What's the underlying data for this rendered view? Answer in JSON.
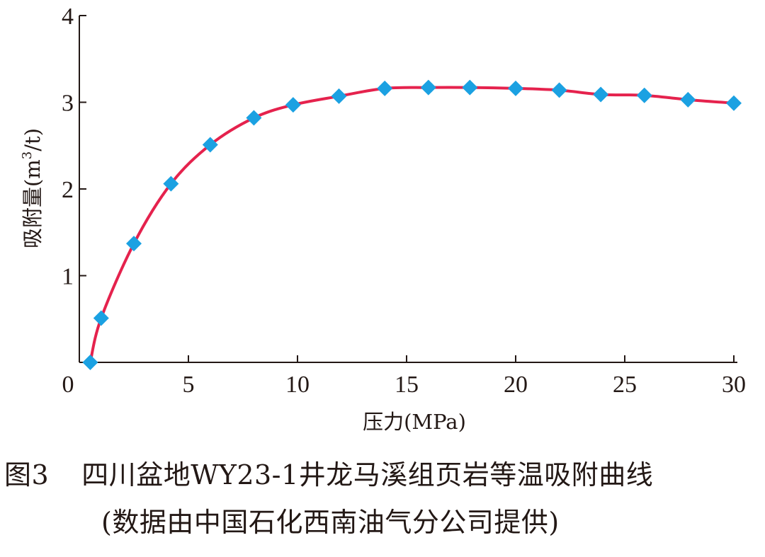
{
  "chart_data": {
    "type": "line",
    "xlabel": "压力(MPa)",
    "ylabel_main": "吸附量(m",
    "ylabel_sup": "3",
    "ylabel_tail": "/t)",
    "xlim": [
      0,
      30
    ],
    "ylim": [
      0,
      4
    ],
    "xticks": [
      0,
      5,
      10,
      15,
      20,
      25,
      30
    ],
    "yticks": [
      1,
      2,
      3,
      4
    ],
    "grid": false,
    "legend": "none",
    "line_color": "#e5224d",
    "marker_color": "#1ba1e2",
    "marker": "diamond",
    "x": [
      0.5,
      1.0,
      2.5,
      4.2,
      6.0,
      8.0,
      9.8,
      11.9,
      14.0,
      16.0,
      17.9,
      20.0,
      22.0,
      23.9,
      25.9,
      27.9,
      30.0
    ],
    "y": [
      0.0,
      0.51,
      1.37,
      2.06,
      2.51,
      2.82,
      2.97,
      3.07,
      3.16,
      3.17,
      3.17,
      3.16,
      3.14,
      3.09,
      3.08,
      3.03,
      2.99
    ]
  },
  "caption": {
    "figure_number": "图3",
    "title": "四川盆地WY23-1井龙马溪组页岩等温吸附曲线",
    "note": "(数据由中国石化西南油气分公司提供)"
  }
}
